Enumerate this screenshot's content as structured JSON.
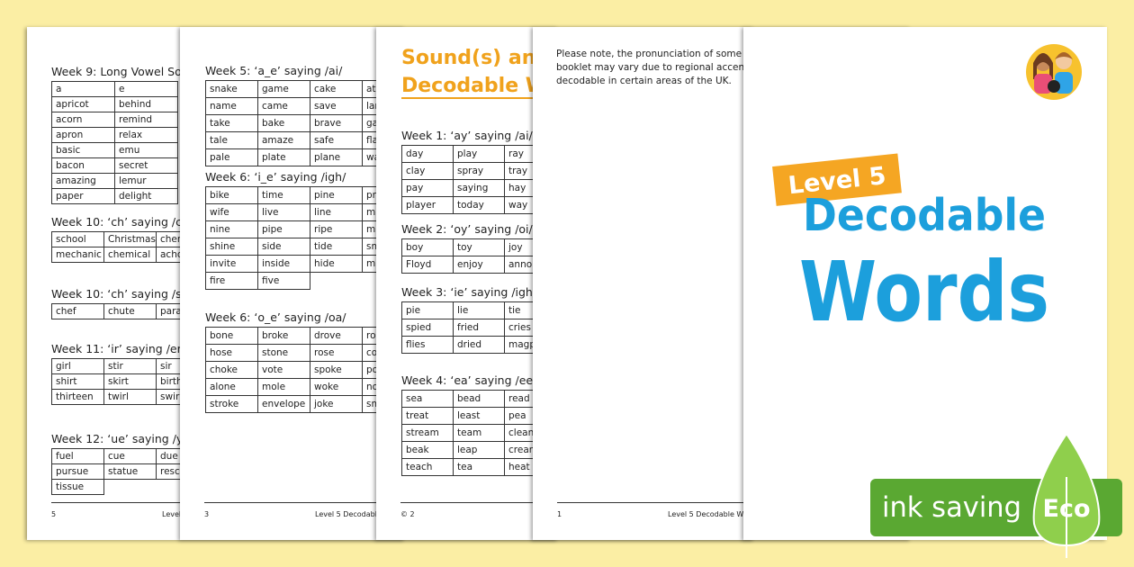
{
  "pages": [
    {
      "blocks": [
        {
          "heading": "Week 9: Long Vowel Sou",
          "rows": [
            [
              "a",
              "e"
            ],
            [
              "apricot",
              "behind"
            ],
            [
              "acorn",
              "remind"
            ],
            [
              "apron",
              "relax"
            ],
            [
              "basic",
              "emu"
            ],
            [
              "bacon",
              "secret"
            ],
            [
              "amazing",
              "lemur"
            ],
            [
              "paper",
              "delight"
            ]
          ]
        },
        {
          "heading": "Week 10: ‘ch’ saying /c/",
          "rows": [
            [
              "school",
              "Christmas",
              "cher"
            ],
            [
              "mechanic",
              "chemical",
              "acho"
            ]
          ]
        },
        {
          "heading": "Week 10: ‘ch’ saying /sh",
          "rows": [
            [
              "chef",
              "chute",
              "parac"
            ]
          ]
        },
        {
          "heading": "Week 11: ‘ir’ saying /er/",
          "rows": [
            [
              "girl",
              "stir",
              "sir"
            ],
            [
              "shirt",
              "skirt",
              "birth"
            ],
            [
              "thirteen",
              "twirl",
              "swirl"
            ]
          ]
        },
        {
          "heading": "Week 12: ‘ue’ saying /yo",
          "rows": [
            [
              "fuel",
              "cue",
              "due"
            ],
            [
              "pursue",
              "statue",
              "resc"
            ],
            [
              "tissue"
            ]
          ]
        }
      ],
      "footer": {
        "number": "5",
        "text": "Level"
      }
    },
    {
      "blocks": [
        {
          "heading": "Week 5: ‘a_e’ saying /ai/",
          "rows": [
            [
              "snake",
              "game",
              "cake",
              "ate"
            ],
            [
              "name",
              "came",
              "save",
              "lar"
            ],
            [
              "take",
              "bake",
              "brave",
              "ga"
            ],
            [
              "tale",
              "amaze",
              "safe",
              "fla"
            ],
            [
              "pale",
              "plate",
              "plane",
              "wa"
            ]
          ]
        },
        {
          "heading": "Week 6: ‘i_e’ saying /igh/",
          "rows": [
            [
              "bike",
              "time",
              "pine",
              "pri"
            ],
            [
              "wife",
              "live",
              "line",
              "mi"
            ],
            [
              "nine",
              "pipe",
              "ripe",
              "mi"
            ],
            [
              "shine",
              "side",
              "tide",
              "sm"
            ],
            [
              "invite",
              "inside",
              "hide",
              "mi"
            ],
            [
              "fire",
              "five"
            ]
          ]
        },
        {
          "heading": "Week 6: ‘o_e’ saying /oa/",
          "rows": [
            [
              "bone",
              "broke",
              "drove",
              "ro"
            ],
            [
              "hose",
              "stone",
              "rose",
              "co"
            ],
            [
              "choke",
              "vote",
              "spoke",
              "po"
            ],
            [
              "alone",
              "mole",
              "woke",
              "no"
            ],
            [
              "stroke",
              "envelope",
              "joke",
              "sm"
            ]
          ]
        }
      ],
      "footer": {
        "number": "3",
        "text": "Level 5 Decodabl"
      }
    },
    {
      "title": [
        "Sound(s) and",
        "Decodable W"
      ],
      "blocks": [
        {
          "heading": "Week 1: ‘ay’ saying /ai/",
          "rows": [
            [
              "day",
              "play",
              "ray"
            ],
            [
              "clay",
              "spray",
              "tray"
            ],
            [
              "pay",
              "saying",
              "hay"
            ],
            [
              "player",
              "today",
              "way"
            ]
          ]
        },
        {
          "heading": "Week 2: ‘oy’ saying /oi/",
          "rows": [
            [
              "boy",
              "toy",
              "joy"
            ],
            [
              "Floyd",
              "enjoy",
              "anno"
            ]
          ]
        },
        {
          "heading": "Week 3: ‘ie’ saying /igh/",
          "rows": [
            [
              "pie",
              "lie",
              "tie"
            ],
            [
              "spied",
              "fried",
              "cries"
            ],
            [
              "flies",
              "dried",
              "magp"
            ]
          ]
        },
        {
          "heading": "Week 4: ‘ea’ saying /ee/",
          "rows": [
            [
              "sea",
              "bead",
              "read"
            ],
            [
              "treat",
              "least",
              "pea"
            ],
            [
              "stream",
              "team",
              "clean"
            ],
            [
              "beak",
              "leap",
              "crean"
            ],
            [
              "teach",
              "tea",
              "heat"
            ]
          ]
        }
      ],
      "footer": {
        "number": "© 2"
      }
    },
    {
      "note": [
        "Please note, the pronunciation of some s",
        "booklet may vary due to regional accents",
        "decodable in certain areas of the UK."
      ],
      "footer": {
        "number": "1",
        "text": "Level 5 Decodable W"
      }
    }
  ],
  "cover": {
    "badge": "Level 5",
    "title": [
      "Decodable",
      "Words"
    ]
  },
  "eco": {
    "text": "ink saving",
    "label": "Eco"
  }
}
